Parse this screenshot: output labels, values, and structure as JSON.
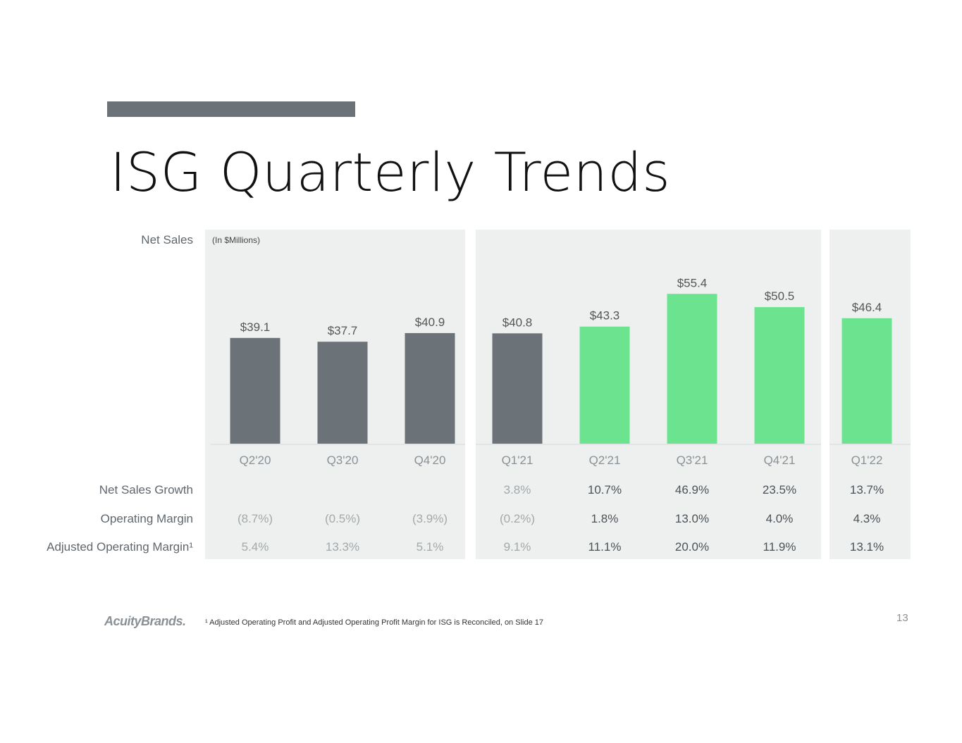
{
  "slide": {
    "title": "ISG Quarterly Trends",
    "units_note": "(In $Millions)",
    "footnote": "¹ Adjusted Operating Profit and Adjusted Operating Profit Margin for ISG is Reconciled, on Slide 17",
    "logo_text": "AcuityBrands.",
    "page_number": "13"
  },
  "row_labels": {
    "net_sales": "Net Sales",
    "net_sales_growth": "Net Sales Growth",
    "operating_margin": "Operating Margin",
    "adjusted_operating_margin": "Adjusted Operating Margin¹"
  },
  "colors": {
    "prior_bar": "#6b7379",
    "current_bar": "#6be38f",
    "panel": "#eef0ef",
    "title_bar": "#6b7379"
  },
  "chart_data": {
    "type": "bar",
    "title": "ISG Quarterly Trends",
    "ylabel": "",
    "categories": [
      "Q2'20",
      "Q3'20",
      "Q4'20",
      "Q1'21",
      "Q2'21",
      "Q3'21",
      "Q4'21",
      "Q1'22"
    ],
    "values": [
      39.1,
      37.7,
      40.9,
      40.8,
      43.3,
      55.4,
      50.5,
      46.4
    ],
    "value_labels": [
      "$39.1",
      "$37.7",
      "$40.9",
      "$40.8",
      "$43.3",
      "$55.4",
      "$50.5",
      "$46.4"
    ],
    "bar_colors": [
      "#6b7379",
      "#6b7379",
      "#6b7379",
      "#6b7379",
      "#6be38f",
      "#6be38f",
      "#6be38f",
      "#6be38f"
    ],
    "ylim": [
      0,
      60
    ],
    "grid": false,
    "groups": [
      {
        "categories": [
          "Q2'20",
          "Q3'20",
          "Q4'20"
        ]
      },
      {
        "categories": [
          "Q1'21",
          "Q2'21",
          "Q3'21",
          "Q4'21"
        ]
      },
      {
        "categories": [
          "Q1'22"
        ]
      }
    ],
    "table": {
      "net_sales_growth": [
        "",
        "",
        "",
        "3.8%",
        "10.7%",
        "46.9%",
        "23.5%",
        "13.7%"
      ],
      "operating_margin": [
        "(8.7%)",
        "(0.5%)",
        "(3.9%)",
        "(0.2%)",
        "1.8%",
        "13.0%",
        "4.0%",
        "4.3%"
      ],
      "adjusted_operating_margin": [
        "5.4%",
        "13.3%",
        "5.1%",
        "9.1%",
        "11.1%",
        "20.0%",
        "11.9%",
        "13.1%"
      ]
    }
  }
}
